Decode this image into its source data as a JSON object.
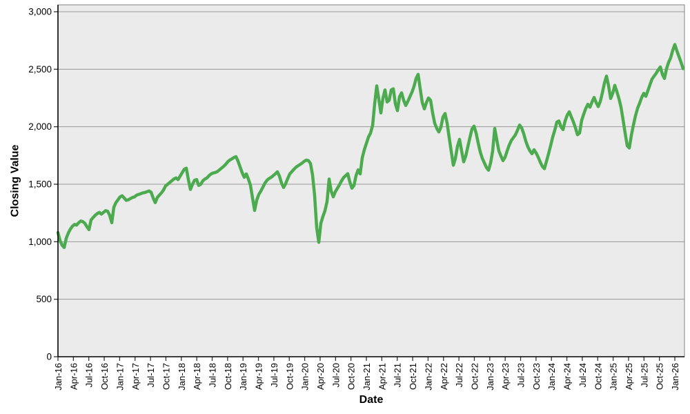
{
  "chart_data": {
    "type": "line",
    "title": "",
    "xlabel": "Date",
    "ylabel": "Closing Value",
    "legend": "none",
    "grid": "horizontal",
    "plot_bg": "#ebebeb",
    "grid_color": "#999999",
    "border_color": "#808080",
    "axis_color": "#000000",
    "tick_color": "#333333",
    "ylim": [
      0,
      3060
    ],
    "y_ticks": [
      {
        "value": 0,
        "label": "0"
      },
      {
        "value": 500,
        "label": "500"
      },
      {
        "value": 1000,
        "label": "1,000"
      },
      {
        "value": 1500,
        "label": "1,500"
      },
      {
        "value": 2000,
        "label": "2,000"
      },
      {
        "value": 2500,
        "label": "2,500"
      },
      {
        "value": 3000,
        "label": "3,000"
      }
    ],
    "x_tick_labels": [
      "Jan-16",
      "Apr-16",
      "Jul-16",
      "Oct-16",
      "Jan-17",
      "Apr-17",
      "Jul-17",
      "Oct-17",
      "Jan-18",
      "Apr-18",
      "Jul-18",
      "Oct-18",
      "Jan-19",
      "Apr-19",
      "Jul-19",
      "Oct-19",
      "Jan-20",
      "Apr-20",
      "Jul-20",
      "Oct-20",
      "Jan-21",
      "Apr-21",
      "Jul-21",
      "Oct-21",
      "Jan-22",
      "Apr-22",
      "Jul-22",
      "Oct-22",
      "Jan-23",
      "Apr-23",
      "Jul-23",
      "Oct-23",
      "Jan-24",
      "Apr-24",
      "Jul-24",
      "Oct-24",
      "Jan-25",
      "Apr-25",
      "Jul-25",
      "Oct-25",
      "Jan-26"
    ],
    "series": [
      {
        "name": "Closing Value",
        "color": "#4cab4f",
        "stroke_width": 4.5,
        "x_start_label": "Jan-16",
        "x_end_label": "Feb-26",
        "values": [
          1080,
          1010,
          970,
          950,
          1030,
          1075,
          1110,
          1135,
          1150,
          1145,
          1165,
          1180,
          1175,
          1160,
          1130,
          1105,
          1190,
          1210,
          1230,
          1245,
          1255,
          1240,
          1255,
          1270,
          1265,
          1230,
          1165,
          1300,
          1340,
          1365,
          1390,
          1400,
          1380,
          1360,
          1365,
          1375,
          1385,
          1390,
          1405,
          1412,
          1418,
          1425,
          1428,
          1435,
          1442,
          1430,
          1380,
          1340,
          1385,
          1405,
          1425,
          1450,
          1485,
          1500,
          1515,
          1530,
          1545,
          1555,
          1540,
          1570,
          1600,
          1630,
          1640,
          1540,
          1455,
          1500,
          1535,
          1540,
          1490,
          1500,
          1530,
          1545,
          1555,
          1575,
          1590,
          1598,
          1602,
          1610,
          1625,
          1640,
          1655,
          1672,
          1695,
          1710,
          1720,
          1732,
          1740,
          1700,
          1650,
          1600,
          1560,
          1590,
          1545,
          1490,
          1380,
          1272,
          1360,
          1410,
          1440,
          1475,
          1510,
          1535,
          1550,
          1560,
          1575,
          1590,
          1608,
          1570,
          1510,
          1472,
          1505,
          1550,
          1590,
          1610,
          1630,
          1648,
          1660,
          1672,
          1685,
          1700,
          1710,
          1705,
          1680,
          1580,
          1400,
          1120,
          995,
          1160,
          1220,
          1270,
          1350,
          1545,
          1440,
          1390,
          1435,
          1465,
          1495,
          1530,
          1558,
          1575,
          1592,
          1520,
          1465,
          1490,
          1575,
          1625,
          1590,
          1730,
          1800,
          1855,
          1910,
          1945,
          2010,
          2200,
          2355,
          2240,
          2120,
          2250,
          2320,
          2215,
          2230,
          2320,
          2330,
          2200,
          2140,
          2260,
          2295,
          2230,
          2185,
          2220,
          2260,
          2300,
          2350,
          2420,
          2455,
          2330,
          2210,
          2155,
          2210,
          2250,
          2230,
          2120,
          2030,
          1985,
          1955,
          1995,
          2085,
          2115,
          2030,
          1905,
          1785,
          1665,
          1725,
          1830,
          1890,
          1790,
          1695,
          1745,
          1825,
          1905,
          1980,
          2005,
          1945,
          1860,
          1780,
          1725,
          1685,
          1645,
          1622,
          1685,
          1790,
          1985,
          1885,
          1790,
          1745,
          1705,
          1735,
          1790,
          1840,
          1880,
          1905,
          1930,
          1970,
          2015,
          1990,
          1940,
          1875,
          1825,
          1790,
          1765,
          1800,
          1772,
          1735,
          1692,
          1655,
          1635,
          1700,
          1765,
          1835,
          1910,
          1970,
          2040,
          2050,
          2000,
          1975,
          2050,
          2100,
          2130,
          2085,
          2042,
          1990,
          1930,
          1945,
          2055,
          2110,
          2160,
          2195,
          2170,
          2215,
          2255,
          2210,
          2175,
          2220,
          2295,
          2380,
          2440,
          2355,
          2245,
          2290,
          2360,
          2305,
          2245,
          2170,
          2060,
          1945,
          1835,
          1815,
          1925,
          2015,
          2095,
          2160,
          2205,
          2255,
          2290,
          2265,
          2315,
          2365,
          2415,
          2440,
          2465,
          2495,
          2520,
          2455,
          2420,
          2505,
          2560,
          2600,
          2665,
          2715,
          2660,
          2610,
          2560,
          2505
        ]
      }
    ]
  }
}
